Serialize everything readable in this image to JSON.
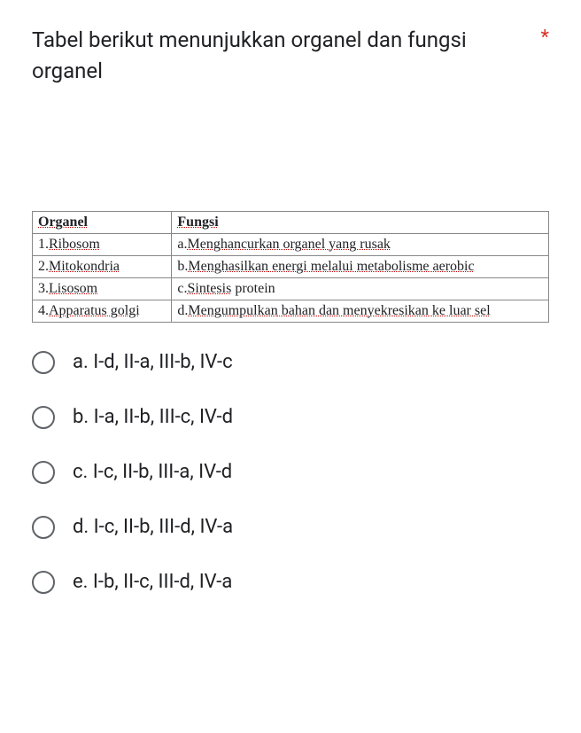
{
  "question": {
    "title": "Tabel berikut menunjukkan organel dan fungsi organel",
    "required_marker": "*"
  },
  "table": {
    "headers": {
      "col1": "Organel",
      "col2": "Fungsi"
    },
    "rows": [
      {
        "org_num": "1.",
        "org_name": "Ribosom",
        "func_letter": "a.",
        "func_text": "Menghancurkan",
        "func_rest": " organel yang rusak"
      },
      {
        "org_num": "2.",
        "org_name": "Mitokondria",
        "func_letter": "b.",
        "func_text": "Menghasilkan",
        "func_rest": " energi melalui metabolisme aerobic"
      },
      {
        "org_num": "3.",
        "org_name": "Lisosom",
        "func_letter": "c.",
        "func_text": "Sintesis",
        "func_rest": " protein"
      },
      {
        "org_num": "4.",
        "org_name": "Apparatus golgi",
        "func_letter": "d.",
        "func_text": "Mengumpulkan",
        "func_rest": " bahan dan menyekresikan ke luar sel"
      }
    ]
  },
  "options": [
    {
      "label": "a. I-d, II-a, III-b, IV-c"
    },
    {
      "label": "b. I-a, II-b, III-c, IV-d"
    },
    {
      "label": "c. I-c, II-b, III-a, IV-d"
    },
    {
      "label": "d. I-c, II-b, III-d, IV-a"
    },
    {
      "label": "e. I-b, II-c, III-d, IV-a"
    }
  ],
  "colors": {
    "text": "#202124",
    "required": "#d93025",
    "radio_border": "#5f6368",
    "dotted_underline": "#c00000",
    "table_border": "#888888",
    "background": "#ffffff"
  },
  "typography": {
    "title_fontsize": 24,
    "option_fontsize": 22,
    "table_fontsize": 16,
    "title_family": "Roboto, Arial, sans-serif",
    "table_family": "Times New Roman, serif"
  }
}
